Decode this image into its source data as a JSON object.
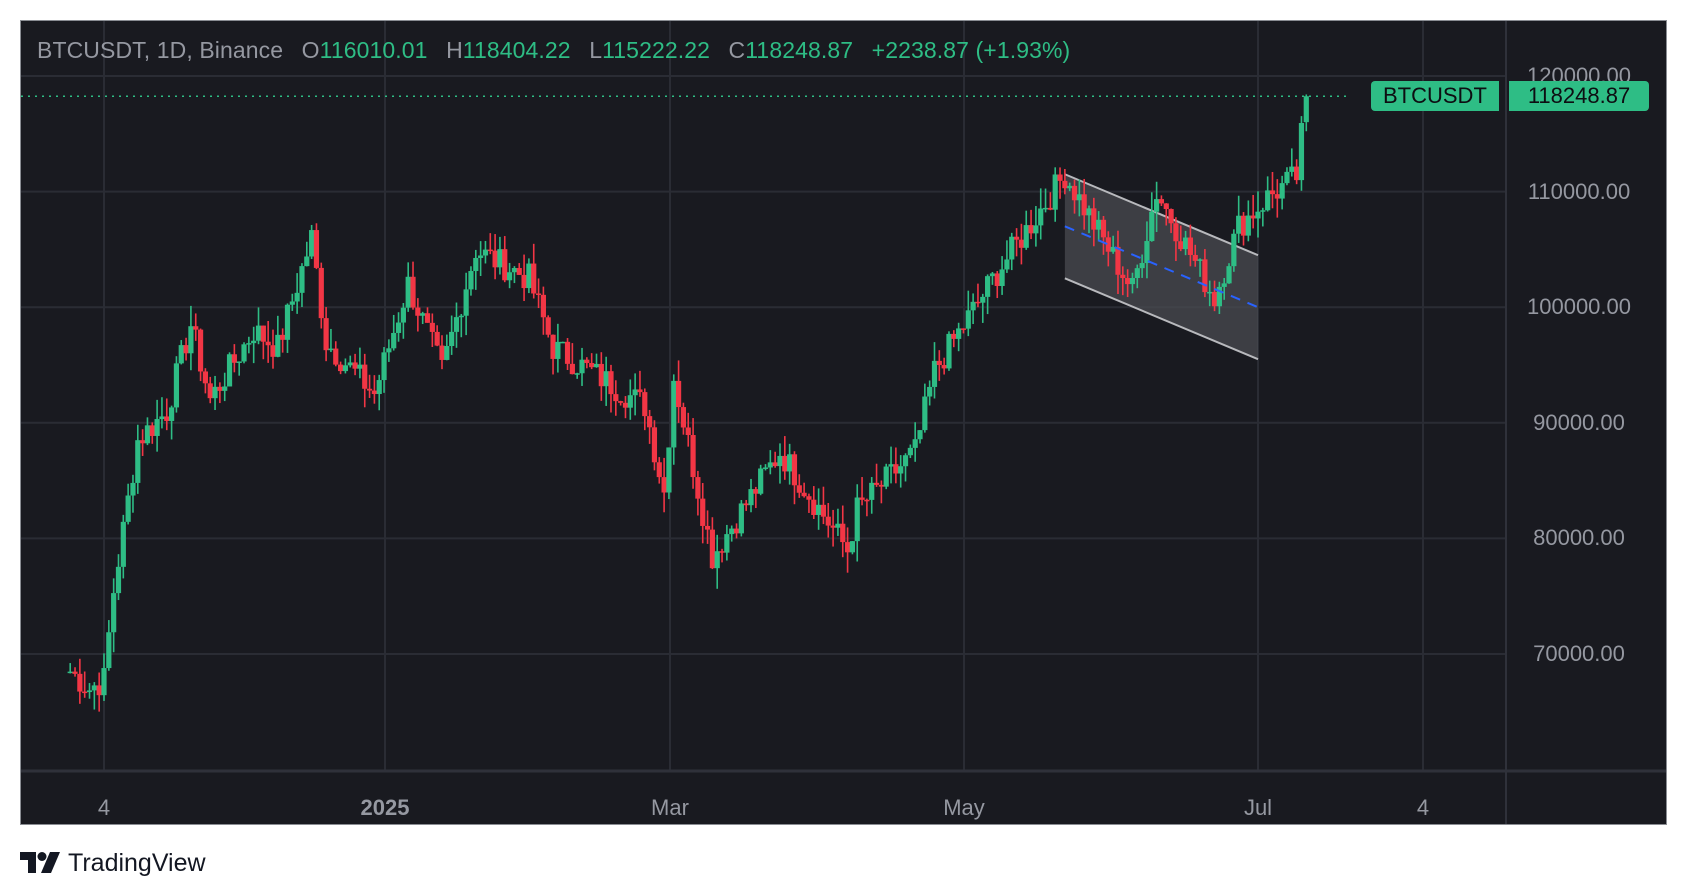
{
  "legend": {
    "symbol": "BTCUSDT, 1D, Binance",
    "open_label": "O",
    "open": "116010.01",
    "high_label": "H",
    "high": "118404.22",
    "low_label": "L",
    "low": "115222.22",
    "close_label": "C",
    "close": "118248.87",
    "change": "+2238.87 (+1.93%)"
  },
  "price_badge": {
    "symbol": "BTCUSDT",
    "price": "118248.87"
  },
  "y_axis": {
    "labels": [
      "120000.00",
      "110000.00",
      "100000.00",
      "90000.00",
      "80000.00",
      "70000.00"
    ]
  },
  "x_axis": {
    "labels": [
      {
        "text": "4",
        "bold": false
      },
      {
        "text": "2025",
        "bold": true
      },
      {
        "text": "Mar",
        "bold": false
      },
      {
        "text": "May",
        "bold": false
      },
      {
        "text": "Jul",
        "bold": false
      },
      {
        "text": "4",
        "bold": false
      }
    ]
  },
  "footer": {
    "brand": "TradingView"
  },
  "colors": {
    "up": "#2ebd85",
    "down": "#f23645",
    "background": "#191a20",
    "grid": "#2a2c34",
    "text": "#9598a1",
    "channel_fill": "#4a4b50",
    "channel_line": "#b8b9bd",
    "midline": "#2962ff"
  },
  "chart_data": {
    "type": "candlestick",
    "title": "BTCUSDT, 1D, Binance",
    "xlabel": "",
    "ylabel": "",
    "ylim": [
      60000,
      121000
    ],
    "x_ticks": [
      "4 (Nov 2024)",
      "2025",
      "Mar",
      "May",
      "Jul",
      "4 (Aug)"
    ],
    "y_ticks": [
      70000,
      80000,
      90000,
      100000,
      110000,
      120000
    ],
    "last_price": 118248.87,
    "last_ohlc": {
      "open": 116010.01,
      "high": 118404.22,
      "low": 115222.22,
      "close": 118248.87,
      "change": 2238.87,
      "change_pct": 1.93
    },
    "approx_close_path": [
      {
        "date": "2024-10-28",
        "close": 68500
      },
      {
        "date": "2024-11-01",
        "close": 67000
      },
      {
        "date": "2024-11-04",
        "close": 67800
      },
      {
        "date": "2024-11-06",
        "close": 75500
      },
      {
        "date": "2024-11-11",
        "close": 88500
      },
      {
        "date": "2024-11-17",
        "close": 91000
      },
      {
        "date": "2024-11-22",
        "close": 98500
      },
      {
        "date": "2024-11-26",
        "close": 92000
      },
      {
        "date": "2024-12-05",
        "close": 98000
      },
      {
        "date": "2024-12-10",
        "close": 96500
      },
      {
        "date": "2024-12-17",
        "close": 106000
      },
      {
        "date": "2024-12-20",
        "close": 97000
      },
      {
        "date": "2024-12-30",
        "close": 92500
      },
      {
        "date": "2025-01-06",
        "close": 102000
      },
      {
        "date": "2025-01-13",
        "close": 94500
      },
      {
        "date": "2025-01-20",
        "close": 105000
      },
      {
        "date": "2025-01-22",
        "close": 104500
      },
      {
        "date": "2025-01-31",
        "close": 102500
      },
      {
        "date": "2025-02-05",
        "close": 96500
      },
      {
        "date": "2025-02-24",
        "close": 91500
      },
      {
        "date": "2025-02-28",
        "close": 84000
      },
      {
        "date": "2025-03-02",
        "close": 94000
      },
      {
        "date": "2025-03-10",
        "close": 78500
      },
      {
        "date": "2025-03-24",
        "close": 87500
      },
      {
        "date": "2025-04-07",
        "close": 79000
      },
      {
        "date": "2025-04-09",
        "close": 82500
      },
      {
        "date": "2025-04-21",
        "close": 87500
      },
      {
        "date": "2025-04-25",
        "close": 94500
      },
      {
        "date": "2025-05-08",
        "close": 103000
      },
      {
        "date": "2025-05-22",
        "close": 111500
      },
      {
        "date": "2025-06-05",
        "close": 101500
      },
      {
        "date": "2025-06-10",
        "close": 110000
      },
      {
        "date": "2025-06-22",
        "close": 100800
      },
      {
        "date": "2025-06-27",
        "close": 107000
      },
      {
        "date": "2025-07-03",
        "close": 109500
      },
      {
        "date": "2025-07-09",
        "close": 111300
      },
      {
        "date": "2025-07-11",
        "close": 118248.87
      }
    ],
    "annotations": [
      {
        "type": "descending_channel",
        "upper": [
          {
            "date": "2025-05-22",
            "price": 111500
          },
          {
            "date": "2025-07-01",
            "price": 104500
          }
        ],
        "lower": [
          {
            "date": "2025-05-22",
            "price": 102500
          },
          {
            "date": "2025-07-01",
            "price": 95500
          }
        ],
        "fill": "#4a4b50"
      },
      {
        "type": "dashed_midline",
        "color": "#2962ff",
        "from": {
          "date": "2025-05-22",
          "price": 107000
        },
        "to": {
          "date": "2025-07-01",
          "price": 100000
        }
      },
      {
        "type": "last_price_line",
        "price": 118248.87,
        "style": "dotted",
        "color": "#2ebd85"
      }
    ]
  }
}
